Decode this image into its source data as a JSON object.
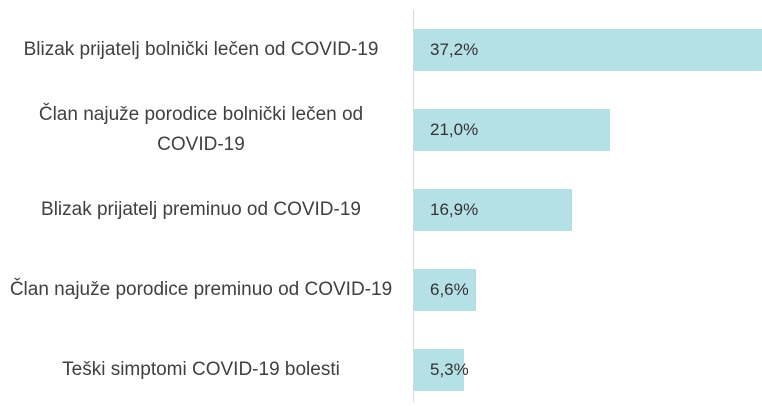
{
  "chart_data": {
    "type": "bar",
    "orientation": "horizontal",
    "categories": [
      "Blizak prijatelj bolnički lečen od COVID-19",
      "Član najuže porodice bolnički lečen od COVID-19",
      "Blizak prijatelj preminuo od COVID-19",
      "Član najuže porodice preminuo od COVID-19",
      "Teški simptomi COVID-19 bolesti"
    ],
    "values": [
      37.2,
      21.0,
      16.9,
      6.6,
      5.3
    ],
    "value_labels": [
      "37,2%",
      "21,0%",
      "16,9%",
      "6,6%",
      "5,3%"
    ],
    "color": "#b5e0e6"
  }
}
